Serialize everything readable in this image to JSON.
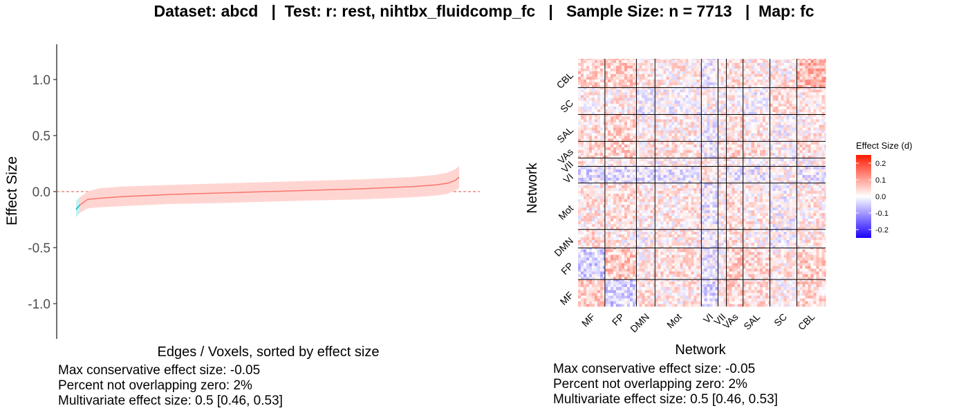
{
  "title": "Dataset: abcd   |  Test: r: rest, nihtbx_fluidcomp_fc   |   Sample Size: n = 7713   |  Map: fc",
  "colors": {
    "curve": "#f8766d",
    "band": "#ffd5d2",
    "neg_curve": "#00bfc4",
    "neg_band": "#c6f0f0",
    "zero_line": "#e0706a",
    "axis": "#333333",
    "heat_low": "#1a00ff",
    "heat_mid": "#ffffff",
    "heat_high": "#ff1a00"
  },
  "chart_data": [
    {
      "type": "area",
      "title": "",
      "xlabel": "Edges / Voxels, sorted by effect size",
      "ylabel": "Effect Size",
      "ylim": [
        -1.3,
        1.3
      ],
      "yticks": [
        1.0,
        0.5,
        0.0,
        -0.5,
        -1.0
      ],
      "ytick_labels": [
        "1.0",
        "0.5",
        "0.0",
        "-0.5",
        "-1.0"
      ],
      "grid": false,
      "x": [
        0,
        0.01,
        0.03,
        0.06,
        0.12,
        0.25,
        0.4,
        0.5,
        0.6,
        0.75,
        0.88,
        0.94,
        0.97,
        0.99,
        1.0
      ],
      "series": [
        {
          "values": [
            -0.16,
            -0.12,
            -0.07,
            -0.06,
            -0.045,
            -0.025,
            -0.01,
            0.0,
            0.01,
            0.025,
            0.045,
            0.06,
            0.075,
            0.1,
            0.13
          ]
        },
        {
          "values": [
            -0.23,
            -0.19,
            -0.15,
            -0.14,
            -0.13,
            -0.11,
            -0.1,
            -0.09,
            -0.08,
            -0.07,
            -0.05,
            -0.035,
            -0.02,
            0.01,
            0.03
          ]
        },
        {
          "values": [
            -0.08,
            -0.05,
            0.0,
            0.03,
            0.045,
            0.06,
            0.075,
            0.085,
            0.095,
            0.11,
            0.13,
            0.15,
            0.17,
            0.2,
            0.23
          ]
        }
      ],
      "negative_segment_until": 0.01,
      "reference_line": 0
    },
    {
      "type": "heatmap",
      "title": "",
      "xlabel": "Network",
      "ylabel": "Network",
      "networks": [
        "MF",
        "FP",
        "DMN",
        "Mot",
        "VI",
        "VII",
        "VAs",
        "SAL",
        "SC",
        "CBL"
      ],
      "network_sizes": [
        29,
        34,
        20,
        50,
        18,
        9,
        18,
        29,
        29,
        31
      ],
      "legend_title": "Effect Size (d)",
      "legend_ticks": [
        0.2,
        0.1,
        0.0,
        -0.1,
        -0.2
      ],
      "legend_tick_labels": [
        "0.2",
        "0.1",
        "0.0",
        "-0.1",
        "-0.2"
      ],
      "color_range": [
        -0.25,
        0.25
      ],
      "block_means": [
        [
          0.05,
          -0.04,
          0.03,
          0.02,
          -0.03,
          0.02,
          0.04,
          0.03,
          0.02,
          0.04
        ],
        [
          -0.04,
          0.06,
          0.02,
          0.03,
          -0.02,
          0.01,
          0.05,
          0.04,
          0.02,
          0.05
        ],
        [
          0.03,
          0.02,
          0.0,
          0.02,
          -0.02,
          0.0,
          0.02,
          0.01,
          -0.01,
          0.02
        ],
        [
          0.02,
          0.03,
          0.02,
          0.02,
          -0.02,
          0.01,
          0.03,
          0.02,
          0.0,
          0.02
        ],
        [
          -0.03,
          -0.02,
          -0.02,
          -0.02,
          0.02,
          0.01,
          -0.02,
          -0.01,
          0.01,
          -0.02
        ],
        [
          0.02,
          0.01,
          0.0,
          0.01,
          0.01,
          0.03,
          0.02,
          0.0,
          0.0,
          0.01
        ],
        [
          0.04,
          0.05,
          0.02,
          0.03,
          -0.02,
          0.02,
          0.04,
          0.03,
          0.01,
          0.03
        ],
        [
          0.03,
          0.04,
          0.01,
          0.02,
          -0.01,
          0.0,
          0.03,
          0.02,
          0.0,
          0.02
        ],
        [
          0.02,
          0.02,
          -0.01,
          0.0,
          0.01,
          0.0,
          0.01,
          0.0,
          0.03,
          0.02
        ],
        [
          0.04,
          0.05,
          0.02,
          0.02,
          -0.02,
          0.01,
          0.03,
          0.02,
          0.02,
          0.08
        ]
      ]
    }
  ],
  "summaries": [
    {
      "max_conservative": "Max conservative effect size: -0.05",
      "percent_not_overlapping": "Percent not overlapping zero: 2%",
      "multivariate": "Multivariate effect size: 0.5 [0.46, 0.53]"
    },
    {
      "max_conservative": "Max conservative effect size: -0.05",
      "percent_not_overlapping": "Percent not overlapping zero: 2%",
      "multivariate": "Multivariate effect size: 0.5 [0.46, 0.53]"
    }
  ]
}
